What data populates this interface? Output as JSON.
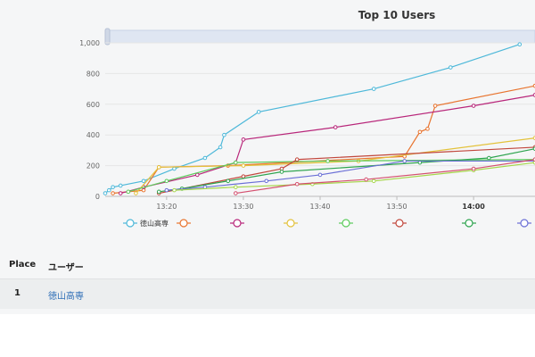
{
  "chart": {
    "title": "Top 10 Users"
  },
  "table": {
    "headers": {
      "place": "Place",
      "user": "ユーザー"
    },
    "rows": [
      {
        "place": "1",
        "user": "徳山高専"
      }
    ]
  },
  "chart_data": {
    "type": "line",
    "title": "Top 10 Users",
    "x_unit": "time",
    "x_range": [
      "13:12",
      "14:08"
    ],
    "x_ticks": [
      "13:20",
      "13:30",
      "13:40",
      "13:50",
      "14:00"
    ],
    "x_ticks_bold": [
      "14:00"
    ],
    "ylim": [
      0,
      1000
    ],
    "y_ticks": [
      0,
      200,
      400,
      600,
      800,
      "1,000"
    ],
    "legend_placement": "bottom",
    "grid": "horizontal",
    "series": [
      {
        "name": "徳山高専",
        "color": "#4db8d9",
        "points": [
          [
            "13:12",
            20
          ],
          [
            "13:12.5",
            40
          ],
          [
            "13:13",
            60
          ],
          [
            "13:14",
            70
          ],
          [
            "13:17",
            100
          ],
          [
            "13:21",
            180
          ],
          [
            "13:25",
            250
          ],
          [
            "13:27",
            320
          ],
          [
            "13:27.5",
            400
          ],
          [
            "13:32",
            550
          ],
          [
            "13:47",
            700
          ],
          [
            "13:57",
            840
          ],
          [
            "14:06",
            990
          ]
        ]
      },
      {
        "name": "",
        "color": "#e8742f",
        "points": [
          [
            "13:13",
            20
          ],
          [
            "13:17",
            40
          ],
          [
            "13:19",
            190
          ],
          [
            "13:28",
            200
          ],
          [
            "13:51",
            260
          ],
          [
            "13:53",
            420
          ],
          [
            "13:54",
            440
          ],
          [
            "13:55",
            590
          ],
          [
            "14:08",
            720
          ]
        ]
      },
      {
        "name": "",
        "color": "#b8267a",
        "points": [
          [
            "13:14",
            20
          ],
          [
            "13:17",
            60
          ],
          [
            "13:24",
            140
          ],
          [
            "13:29",
            220
          ],
          [
            "13:30",
            370
          ],
          [
            "13:42",
            450
          ],
          [
            "14:00",
            590
          ],
          [
            "14:08",
            660
          ]
        ]
      },
      {
        "name": "",
        "color": "#e3c23b",
        "points": [
          [
            "13:16",
            20
          ],
          [
            "13:19",
            190
          ],
          [
            "13:30",
            200
          ],
          [
            "13:45",
            230
          ],
          [
            "14:08",
            380
          ]
        ]
      },
      {
        "name": "",
        "color": "#5ccc5c",
        "points": [
          [
            "13:15",
            30
          ],
          [
            "13:20",
            100
          ],
          [
            "13:29",
            220
          ],
          [
            "13:41",
            230
          ],
          [
            "14:08",
            240
          ]
        ]
      },
      {
        "name": "",
        "color": "#c1473c",
        "points": [
          [
            "13:19",
            20
          ],
          [
            "13:30",
            130
          ],
          [
            "13:35",
            180
          ],
          [
            "13:37",
            240
          ],
          [
            "14:08",
            320
          ]
        ]
      },
      {
        "name": "",
        "color": "#2ea44f",
        "points": [
          [
            "13:19",
            30
          ],
          [
            "13:22",
            50
          ],
          [
            "13:28",
            100
          ],
          [
            "13:35",
            160
          ],
          [
            "13:53",
            220
          ],
          [
            "14:02",
            250
          ],
          [
            "14:08",
            310
          ]
        ]
      },
      {
        "name": "",
        "color": "#6a6fd6",
        "points": [
          [
            "13:20",
            40
          ],
          [
            "13:25",
            60
          ],
          [
            "13:33",
            100
          ],
          [
            "13:40",
            140
          ],
          [
            "13:51",
            230
          ],
          [
            "14:08",
            230
          ]
        ]
      },
      {
        "name": "",
        "color": "#a6d64a",
        "points": [
          [
            "13:21",
            40
          ],
          [
            "13:29",
            60
          ],
          [
            "13:39",
            80
          ],
          [
            "13:47",
            100
          ],
          [
            "14:00",
            170
          ],
          [
            "14:08",
            220
          ]
        ]
      },
      {
        "name": "",
        "color": "#d4506f",
        "points": [
          [
            "13:29",
            20
          ],
          [
            "13:37",
            80
          ],
          [
            "13:46",
            110
          ],
          [
            "14:00",
            180
          ],
          [
            "14:08",
            240
          ]
        ]
      }
    ]
  }
}
